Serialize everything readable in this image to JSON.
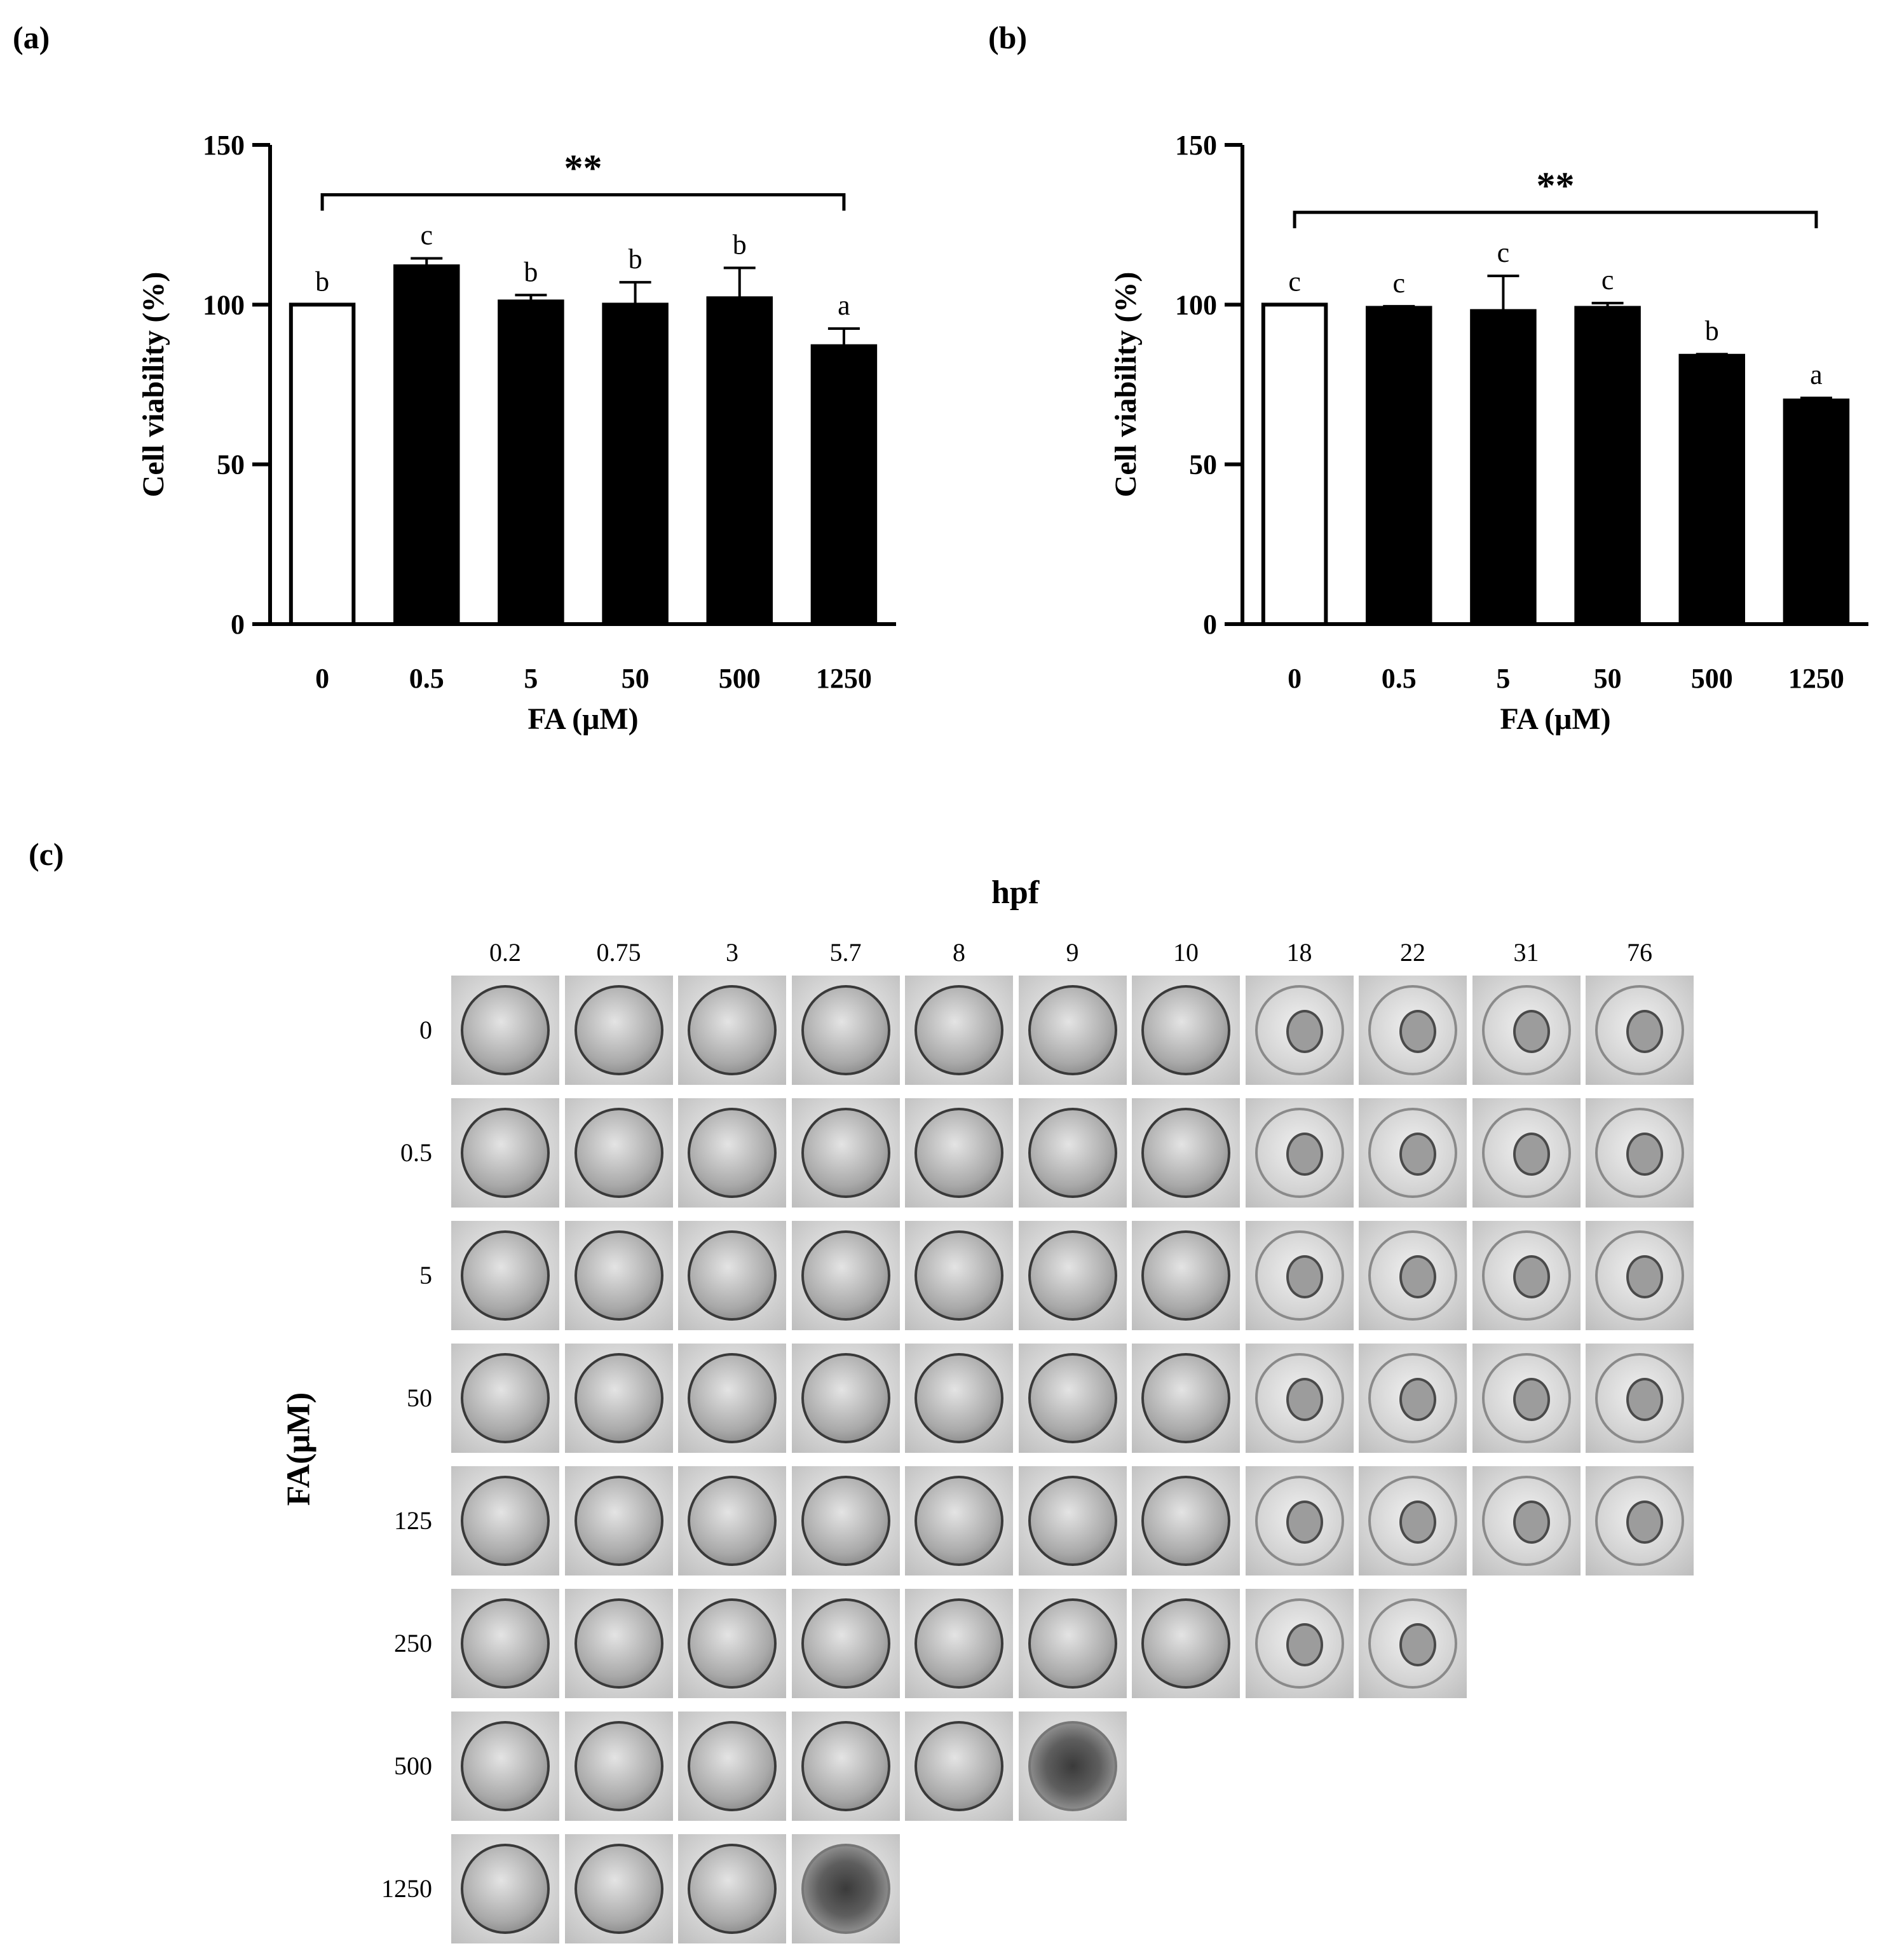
{
  "panels": {
    "a": "(a)",
    "b": "(b)",
    "c": "(c)"
  },
  "chart_data": [
    {
      "type": "bar",
      "categories": [
        "0",
        "0.5",
        "5",
        "50",
        "500",
        "1250"
      ],
      "values": [
        100,
        112,
        101,
        100,
        102,
        87
      ],
      "errors": [
        0,
        2.5,
        2,
        7,
        9.5,
        5.5
      ],
      "letters": [
        "b",
        "c",
        "b",
        "b",
        "b",
        "a"
      ],
      "bar_colors": [
        "#ffffff",
        "#000000",
        "#000000",
        "#000000",
        "#000000",
        "#000000"
      ],
      "xlabel": "FA (μM)",
      "ylabel": "Cell viability (%)",
      "ylim": [
        0,
        150
      ],
      "yticks": [
        0,
        50,
        100,
        150
      ],
      "significance": {
        "from": "0",
        "to": "1250",
        "label": "**"
      }
    },
    {
      "type": "bar",
      "categories": [
        "0",
        "0.5",
        "5",
        "50",
        "500",
        "1250"
      ],
      "values": [
        100,
        99,
        98,
        99,
        84,
        70
      ],
      "errors": [
        0,
        0.5,
        11,
        1.5,
        0.5,
        0.8
      ],
      "letters": [
        "c",
        "c",
        "c",
        "c",
        "b",
        "a"
      ],
      "bar_colors": [
        "#ffffff",
        "#000000",
        "#000000",
        "#000000",
        "#000000",
        "#000000"
      ],
      "xlabel": "FA (μM)",
      "ylabel": "Cell viability (%)",
      "ylim": [
        0,
        150
      ],
      "yticks": [
        0,
        50,
        100,
        150
      ],
      "significance": {
        "from": "0",
        "to": "1250",
        "label": "**"
      }
    }
  ],
  "embryo_grid": {
    "column_title": "hpf",
    "row_title": "FA(μM)",
    "hpf": [
      "0.2",
      "0.75",
      "3",
      "5.7",
      "8",
      "9",
      "10",
      "18",
      "22",
      "31",
      "76"
    ],
    "rows": [
      {
        "label": "0",
        "images": 11
      },
      {
        "label": "0.5",
        "images": 11
      },
      {
        "label": "5",
        "images": 11
      },
      {
        "label": "50",
        "images": 11
      },
      {
        "label": "125",
        "images": 11
      },
      {
        "label": "250",
        "images": 9
      },
      {
        "label": "500",
        "images": 6
      },
      {
        "label": "1250",
        "images": 4
      }
    ]
  }
}
